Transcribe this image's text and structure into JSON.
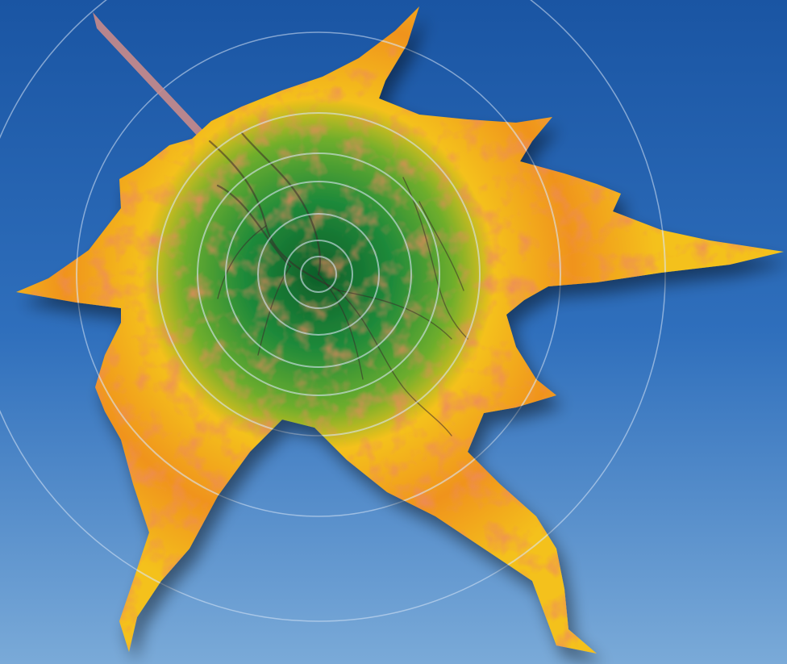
{
  "image": {
    "subject": "leaf-retina-composite",
    "colors": {
      "background_top": "#1a55a3",
      "background_mid": "#2f6fbc",
      "background_bottom": "#7aaad8",
      "leaf_yellow": "#f4c11c",
      "leaf_orange": "#f0931f",
      "leaf_red": "#d9452a",
      "center_green": "#1f8a3a",
      "center_dark_green": "#0f5f2a",
      "vein_color": "#3b2a2a",
      "ring_color": "#d8e6f5",
      "stem_color": "#c98b8b"
    },
    "ring_count": 8
  }
}
